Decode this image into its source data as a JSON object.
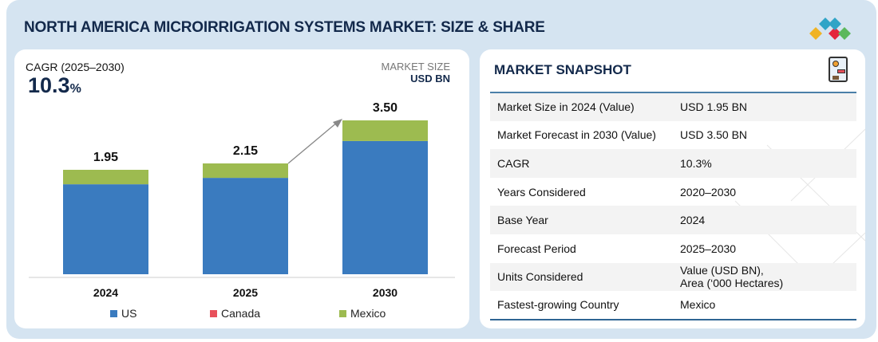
{
  "header": {
    "title": "NORTH AMERICA MICROIRRIGATION SYSTEMS MARKET: SIZE & SHARE",
    "logo_colors": [
      "#f0b323",
      "#e5243b",
      "#2fa4c7",
      "#5cb85c"
    ]
  },
  "left_panel": {
    "cagr_label": "CAGR (2025–2030)",
    "cagr_value": "10.3",
    "cagr_unit": "%",
    "market_size_label": "MARKET SIZE",
    "market_size_unit": "USD BN"
  },
  "chart_data": {
    "type": "bar",
    "stacked": true,
    "categories": [
      "2024",
      "2025",
      "2030"
    ],
    "totals": [
      1.95,
      2.15,
      3.5
    ],
    "total_labels": [
      "1.95",
      "2.15",
      "3.50"
    ],
    "series": [
      {
        "name": "US",
        "color": "#3a7bbf",
        "values": [
          1.68,
          1.87,
          3.03
        ]
      },
      {
        "name": "Canada",
        "color": "#e8505b"
      },
      {
        "name": "Mexico",
        "color": "#9dbb50",
        "values": [
          0.27,
          0.28,
          0.47
        ]
      }
    ],
    "ylabel": "USD BN",
    "grid": false,
    "legend": "bottom",
    "annotation": "growth arrow from 2025 to 2030"
  },
  "snapshot": {
    "title": "MARKET SNAPSHOT",
    "icon": "report-document-icon",
    "rows": [
      {
        "key": "Market Size in 2024 (Value)",
        "value": "USD 1.95 BN"
      },
      {
        "key": "Market Forecast in 2030 (Value)",
        "value": "USD 3.50 BN"
      },
      {
        "key": "CAGR",
        "value": "10.3%"
      },
      {
        "key": "Years Considered",
        "value": "2020–2030"
      },
      {
        "key": "Base Year",
        "value": "2024"
      },
      {
        "key": "Forecast Period",
        "value": "2025–2030"
      },
      {
        "key": "Units Considered",
        "value": "Value (USD BN),",
        "value2": "Area (‘000 Hectares)"
      },
      {
        "key": "Fastest-growing Country",
        "value": "Mexico"
      }
    ]
  }
}
